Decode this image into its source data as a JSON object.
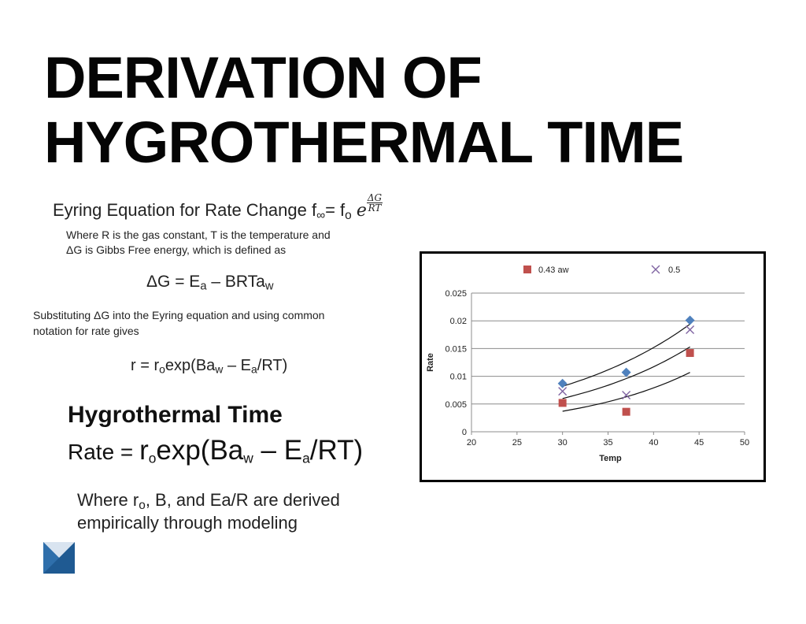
{
  "title": {
    "line1": "DERIVATION OF",
    "line2": "HYGROTHERMAL TIME"
  },
  "eyring": {
    "label": "Eyring Equation for Rate Change f",
    "sub_inf": "∞",
    "equals": "= f",
    "sub_o": "o",
    "exp_base": "e",
    "exp_num": "ΔG",
    "exp_den": "RT"
  },
  "where_r": {
    "line1": "Where R is the gas constant, T is the temperature and",
    "line2": "ΔG is Gibbs Free energy, which is defined as"
  },
  "dg_equation": {
    "lhs": "ΔG = E",
    "sub_a": "a",
    "mid": " – BRTa",
    "sub_w": "w"
  },
  "substituting": {
    "line1": "Substituting ΔG into the Eyring equation and using common",
    "line2": "notation for rate gives"
  },
  "r_equation": {
    "p1": "r = r",
    "sub_o": "o",
    "p2": "exp(Ba",
    "sub_w": "w",
    "p3": " – E",
    "sub_a": "a",
    "p4": "/RT)"
  },
  "hygrothermal": {
    "heading": "Hygrothermal Time",
    "p1": "Rate = ",
    "p2": "r",
    "sub_o": "o",
    "p3": "exp(Ba",
    "sub_w": "w",
    "p4": " – E",
    "sub_a": "a",
    "p5": "/RT)"
  },
  "where_ro": {
    "p1": "Where r",
    "sub_o": "o",
    "p2": ", B, and Ea/R are derived",
    "line2": "empirically through modeling"
  },
  "logo": {
    "icon": "chevron-logo-icon",
    "color": "#1f5a92"
  },
  "chart_data": {
    "type": "scatter",
    "xlabel": "Temp",
    "ylabel": "Rate",
    "xlim": [
      20,
      50
    ],
    "ylim": [
      0,
      0.025
    ],
    "x_ticks": [
      "20",
      "25",
      "30",
      "35",
      "40",
      "45",
      "50"
    ],
    "y_ticks": [
      "0",
      "0.005",
      "0.01",
      "0.015",
      "0.02",
      "0.025"
    ],
    "grid": "horizontal",
    "legend_position": "top",
    "series": [
      {
        "name": "",
        "marker": "diamond",
        "color": "#4f81bd",
        "x": [
          30,
          37,
          44
        ],
        "y": [
          0.0087,
          0.0107,
          0.0201
        ],
        "trend": {
          "x": [
            30,
            44
          ],
          "y": [
            0.0082,
            0.0194
          ]
        }
      },
      {
        "name": "0.5",
        "marker": "x",
        "color": "#8064a2",
        "x": [
          30,
          37,
          44
        ],
        "y": [
          0.0073,
          0.0066,
          0.0184
        ],
        "trend": {
          "x": [
            30,
            44
          ],
          "y": [
            0.006,
            0.0153
          ]
        }
      },
      {
        "name": "0.43 aw",
        "marker": "square",
        "color": "#c0504d",
        "x": [
          30,
          37,
          44
        ],
        "y": [
          0.0052,
          0.0036,
          0.0142
        ],
        "trend": {
          "x": [
            30,
            44
          ],
          "y": [
            0.0037,
            0.0107
          ]
        }
      }
    ]
  }
}
